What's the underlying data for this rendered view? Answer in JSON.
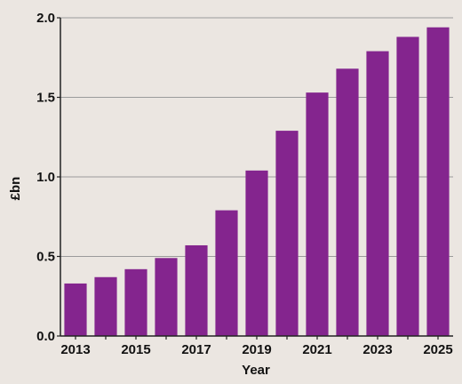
{
  "chart_data": {
    "type": "bar",
    "title": "",
    "xlabel": "Year",
    "ylabel": "£bn",
    "ylim": [
      0,
      2.0
    ],
    "yticks": [
      "0.0",
      "0.5",
      "1.0",
      "1.5",
      "2.0"
    ],
    "categories": [
      "2013",
      "2014",
      "2015",
      "2016",
      "2017",
      "2018",
      "2019",
      "2020",
      "2021",
      "2022",
      "2023",
      "2024",
      "2025"
    ],
    "xtick_labels": [
      "2013",
      "",
      "2015",
      "",
      "2017",
      "",
      "2019",
      "",
      "2021",
      "",
      "2023",
      "",
      "2025"
    ],
    "values": [
      0.33,
      0.37,
      0.42,
      0.49,
      0.57,
      0.79,
      1.04,
      1.29,
      1.53,
      1.68,
      1.79,
      1.88,
      1.94
    ],
    "grid": true,
    "legend": "none",
    "colors": {
      "bar": "#84258e",
      "background": "#ebe6e1",
      "grid": "#9b9b9b",
      "axis": "#222222"
    }
  }
}
